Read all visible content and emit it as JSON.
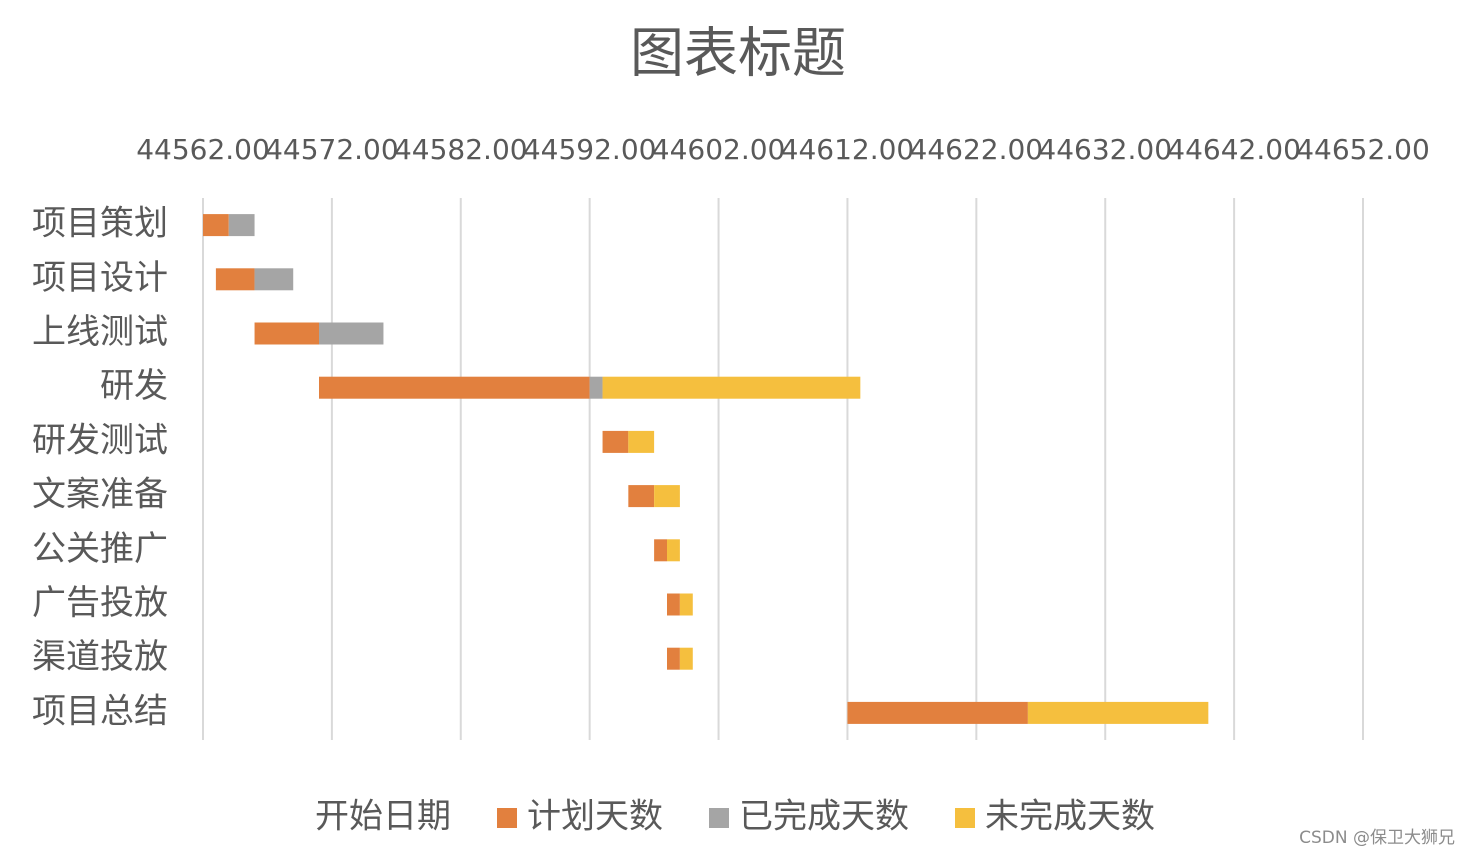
{
  "chart_data": {
    "type": "gantt",
    "title": "图表标题",
    "categories": [
      "项目策划",
      "项目设计",
      "上线测试",
      "研发",
      "研发测试",
      "文案准备",
      "公关推广",
      "广告投放",
      "渠道投放",
      "项目总结"
    ],
    "series": [
      {
        "name": "开始日期",
        "color": "none",
        "values": [
          44562,
          44563,
          44566,
          44571,
          44593,
          44595,
          44597,
          44598,
          44598,
          44612
        ]
      },
      {
        "name": "计划天数",
        "color": "#e2803e",
        "values": [
          2,
          3,
          5,
          21,
          2,
          2,
          1,
          1,
          1,
          14
        ]
      },
      {
        "name": "已完成天数",
        "color": "#a5a5a5",
        "values": [
          2,
          3,
          5,
          1,
          0,
          0,
          0,
          0,
          0,
          0
        ]
      },
      {
        "name": "未完成天数",
        "color": "#f5bf3e",
        "values": [
          0,
          0,
          0,
          20,
          2,
          2,
          1,
          1,
          1,
          14
        ]
      }
    ],
    "xlim": [
      44562,
      44652
    ],
    "xticks": [
      {
        "value": 44562,
        "label": "44562.00"
      },
      {
        "value": 44572,
        "label": "44572.00"
      },
      {
        "value": 44582,
        "label": "44582.00"
      },
      {
        "value": 44592,
        "label": "44592.00"
      },
      {
        "value": 44602,
        "label": "44602.00"
      },
      {
        "value": 44612,
        "label": "44612.00"
      },
      {
        "value": 44622,
        "label": "44622.00"
      },
      {
        "value": 44632,
        "label": "44632.00"
      },
      {
        "value": 44642,
        "label": "44642.00"
      },
      {
        "value": 44652,
        "label": "44652.00"
      }
    ],
    "grid": true,
    "legend": "bottom",
    "watermark": "CSDN @保卫大狮兄"
  }
}
